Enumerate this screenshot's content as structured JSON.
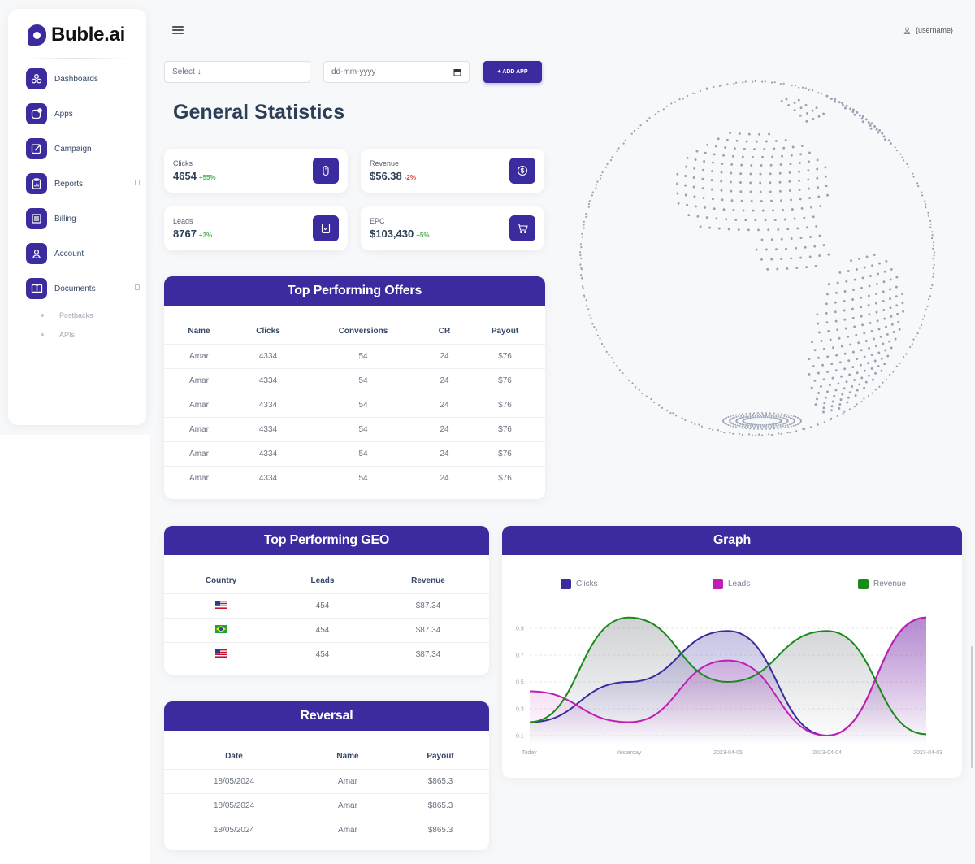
{
  "app": {
    "logo_text": "Buble.ai"
  },
  "sidebar": {
    "items": [
      {
        "label": "Dashboards",
        "icon": "dashboard-icon"
      },
      {
        "label": "Apps",
        "icon": "apps-icon"
      },
      {
        "label": "Campaign",
        "icon": "edit-icon"
      },
      {
        "label": "Reports",
        "icon": "clipboard-icon"
      },
      {
        "label": "Billing",
        "icon": "billing-icon"
      },
      {
        "label": "Account",
        "icon": "user-icon"
      },
      {
        "label": "Documents",
        "icon": "book-icon"
      }
    ],
    "sub_items": [
      "Postbacks",
      "APIs"
    ]
  },
  "header": {
    "username": "{username}"
  },
  "filters": {
    "select_label": "Select ↓",
    "date_placeholder": "dd-mm-yyyy",
    "add_button": "+ ADD APP"
  },
  "page_title": "General Statistics",
  "stats": [
    {
      "label": "Clicks",
      "value": "4654",
      "change": "+55%",
      "trend": "up",
      "icon": "mouse-icon"
    },
    {
      "label": "Revenue",
      "value": "$56.38",
      "change": "-2%",
      "trend": "down",
      "icon": "dollar-icon"
    },
    {
      "label": "Leads",
      "value": "8767",
      "change": "+3%",
      "trend": "up",
      "icon": "checklist-icon"
    },
    {
      "label": "EPC",
      "value": "$103,430",
      "change": "+5%",
      "trend": "up",
      "icon": "cart-icon"
    }
  ],
  "offers": {
    "title": "Top Performing Offers",
    "columns": [
      "Name",
      "Clicks",
      "Conversions",
      "CR",
      "Payout"
    ],
    "rows": [
      [
        "Amar",
        "4334",
        "54",
        "24",
        "$76"
      ],
      [
        "Amar",
        "4334",
        "54",
        "24",
        "$76"
      ],
      [
        "Amar",
        "4334",
        "54",
        "24",
        "$76"
      ],
      [
        "Amar",
        "4334",
        "54",
        "24",
        "$76"
      ],
      [
        "Amar",
        "4334",
        "54",
        "24",
        "$76"
      ],
      [
        "Amar",
        "4334",
        "54",
        "24",
        "$76"
      ]
    ]
  },
  "geo": {
    "title": "Top Performing GEO",
    "columns": [
      "Country",
      "Leads",
      "Revenue"
    ],
    "rows": [
      {
        "flag": "us-flag-icon",
        "leads": "454",
        "revenue": "$87.34"
      },
      {
        "flag": "br-flag-icon",
        "leads": "454",
        "revenue": "$87.34"
      },
      {
        "flag": "us-flag-icon",
        "leads": "454",
        "revenue": "$87.34"
      }
    ]
  },
  "reversal": {
    "title": "Reversal",
    "columns": [
      "Date",
      "Name",
      "Payout"
    ],
    "rows": [
      [
        "18/05/2024",
        "Amar",
        "$865.3"
      ],
      [
        "18/05/2024",
        "Amar",
        "$865.3"
      ],
      [
        "18/05/2024",
        "Amar",
        "$865.3"
      ]
    ]
  },
  "graph": {
    "title": "Graph"
  },
  "colors": {
    "primary": "#3a2b9e",
    "clicks": "#3a2b9e",
    "leads": "#c21db5",
    "revenue": "#1a8a1a",
    "positive": "#4caf50",
    "negative": "#e53935"
  },
  "chart_data": {
    "type": "line",
    "categories": [
      "Today",
      "Yesterday",
      "2023-04-05",
      "2023-04-04",
      "2023-04-03"
    ],
    "series": [
      {
        "name": "Clicks",
        "values": [
          0.2,
          0.5,
          0.88,
          0.1,
          0.98
        ]
      },
      {
        "name": "Leads",
        "values": [
          0.43,
          0.2,
          0.66,
          0.1,
          0.98
        ]
      },
      {
        "name": "Revenue",
        "values": [
          0.2,
          0.98,
          0.5,
          0.88,
          0.11
        ]
      }
    ],
    "y_ticks": [
      "0.9",
      "0.7",
      "0.5",
      "0.3",
      "0.1"
    ],
    "ylim": [
      0.1,
      0.9
    ],
    "legend_position": "top",
    "grid": true
  }
}
